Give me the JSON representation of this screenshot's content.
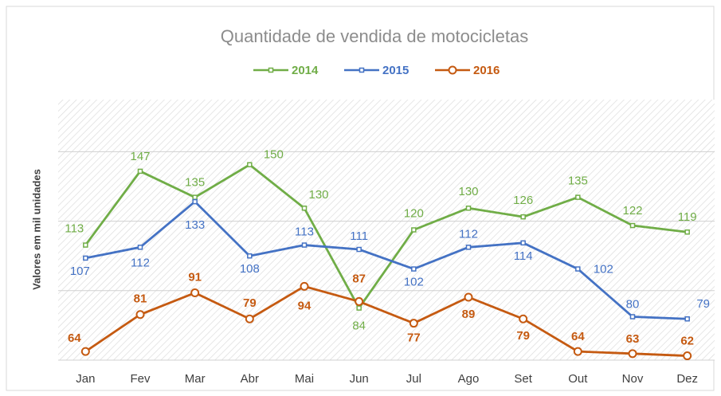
{
  "chart_data": {
    "type": "line",
    "title": "Quantidade de vendida de motocicletas",
    "y_label": "Valores em mil unidades",
    "categories": [
      "Jan",
      "Fev",
      "Mar",
      "Abr",
      "Mai",
      "Jun",
      "Jul",
      "Ago",
      "Set",
      "Out",
      "Nov",
      "Dez"
    ],
    "series": [
      {
        "name": "2014",
        "color": "#70ad47",
        "values": [
          113,
          147,
          135,
          150,
          130,
          84,
          120,
          130,
          126,
          135,
          122,
          119
        ]
      },
      {
        "name": "2015",
        "color": "#4472c4",
        "values": [
          107,
          112,
          133,
          108,
          113,
          111,
          102,
          112,
          114,
          102,
          80,
          79
        ]
      },
      {
        "name": "2016",
        "color": "#c55a11",
        "values": [
          64,
          81,
          91,
          79,
          94,
          87,
          77,
          89,
          79,
          64,
          63,
          62
        ]
      }
    ],
    "ylim": [
      60,
      180
    ],
    "yticks": [
      60,
      92,
      124,
      156
    ],
    "grid": true,
    "legend": "top"
  }
}
